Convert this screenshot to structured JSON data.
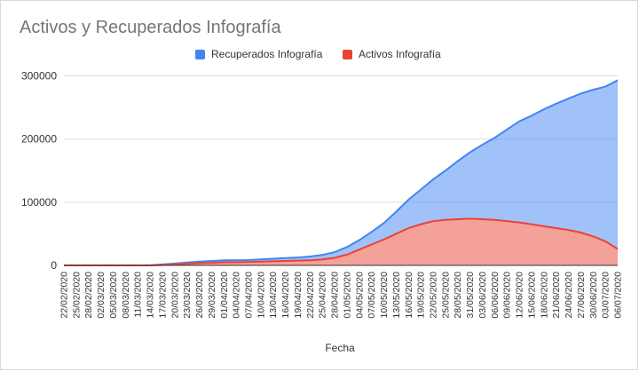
{
  "chart_data": {
    "type": "area",
    "title": "Activos y Recuperados Infografía",
    "xlabel": "Fecha",
    "ylabel": "",
    "ylim": [
      0,
      340000
    ],
    "y_ticks": [
      "0",
      "100000",
      "200000",
      "300000"
    ],
    "y_tick_values": [
      0,
      100000,
      200000,
      300000
    ],
    "grid": true,
    "legend_position": "top",
    "stacked": true,
    "x_tick_labels": [
      "22/02/2020",
      "25/02/2020",
      "28/02/2020",
      "02/03/2020",
      "05/03/2020",
      "08/03/2020",
      "11/03/2020",
      "14/03/2020",
      "17/03/2020",
      "20/03/2020",
      "23/03/2020",
      "26/03/2020",
      "29/03/2020",
      "01/04/2020",
      "04/04/2020",
      "07/04/2020",
      "10/04/2020",
      "13/04/2020",
      "16/04/2020",
      "19/04/2020",
      "22/04/2020",
      "25/04/2020",
      "28/04/2020",
      "01/05/2020",
      "04/05/2020",
      "07/05/2020",
      "10/05/2020",
      "13/05/2020",
      "16/05/2020",
      "19/05/2020",
      "22/05/2020",
      "25/05/2020",
      "28/05/2020",
      "31/05/2020",
      "03/06/2020",
      "06/06/2020",
      "09/06/2020",
      "12/06/2020",
      "15/06/2020",
      "18/06/2020",
      "21/06/2020",
      "24/06/2020",
      "27/06/2020",
      "30/06/2020",
      "03/07/2020",
      "06/07/2020"
    ],
    "series": [
      {
        "name": "Recuperados Infografía",
        "color": "#4285f4",
        "values": [
          0,
          0,
          0,
          0,
          0,
          0,
          0,
          0,
          1000,
          1500,
          2000,
          2500,
          3000,
          3000,
          3000,
          3000,
          3500,
          4000,
          4500,
          5000,
          6000,
          7000,
          9000,
          12000,
          15000,
          20000,
          26000,
          35000,
          45000,
          55000,
          66000,
          78000,
          92000,
          105000,
          118000,
          130000,
          145000,
          160000,
          172000,
          185000,
          197000,
          208000,
          220000,
          232000,
          245000,
          267000
        ]
      },
      {
        "name": "Activos Infografía",
        "color": "#ea4335",
        "values": [
          0,
          0,
          0,
          0,
          0,
          0,
          0,
          0,
          500,
          1500,
          2500,
          3500,
          4000,
          5000,
          5000,
          5500,
          6000,
          6500,
          7000,
          7500,
          8000,
          9500,
          12000,
          17000,
          25000,
          33000,
          41000,
          50000,
          59000,
          65000,
          70000,
          72000,
          73000,
          74000,
          73000,
          72000,
          70000,
          68000,
          65000,
          62000,
          59000,
          56000,
          52000,
          46000,
          38000,
          26000
        ]
      }
    ]
  }
}
